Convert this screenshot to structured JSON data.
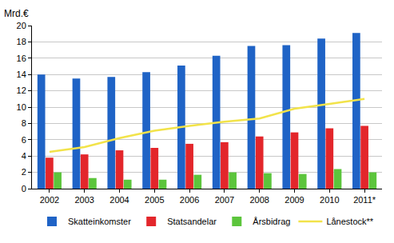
{
  "chart_data": {
    "type": "bar",
    "ylabel": "Mrd.€",
    "categories": [
      "2002",
      "2003",
      "2004",
      "2005",
      "2006",
      "2007",
      "2008",
      "2009",
      "2010",
      "2011*"
    ],
    "series": [
      {
        "name": "Skatteinkomster",
        "type": "bar",
        "color": "#1F63C6",
        "values": [
          14.0,
          13.5,
          13.7,
          14.3,
          15.1,
          16.3,
          17.5,
          17.6,
          18.4,
          19.1
        ]
      },
      {
        "name": "Statsandelar",
        "type": "bar",
        "color": "#E3262B",
        "values": [
          3.8,
          4.2,
          4.7,
          5.0,
          5.5,
          5.7,
          6.4,
          6.9,
          7.4,
          7.7
        ]
      },
      {
        "name": "Årsbidrag",
        "type": "bar",
        "color": "#5CC53C",
        "values": [
          2.0,
          1.3,
          1.1,
          1.1,
          1.7,
          2.0,
          1.9,
          1.8,
          2.4,
          2.0
        ]
      },
      {
        "name": "Lånestock**",
        "type": "line",
        "color": "#F2E34A",
        "values": [
          4.5,
          5.1,
          6.2,
          7.1,
          7.7,
          8.2,
          8.6,
          9.8,
          10.4,
          11.0
        ]
      }
    ],
    "ylim": [
      0,
      20
    ],
    "yticks": [
      0,
      2,
      4,
      6,
      8,
      10,
      12,
      14,
      16,
      18,
      20
    ],
    "grid": true,
    "legend": "bottom"
  }
}
